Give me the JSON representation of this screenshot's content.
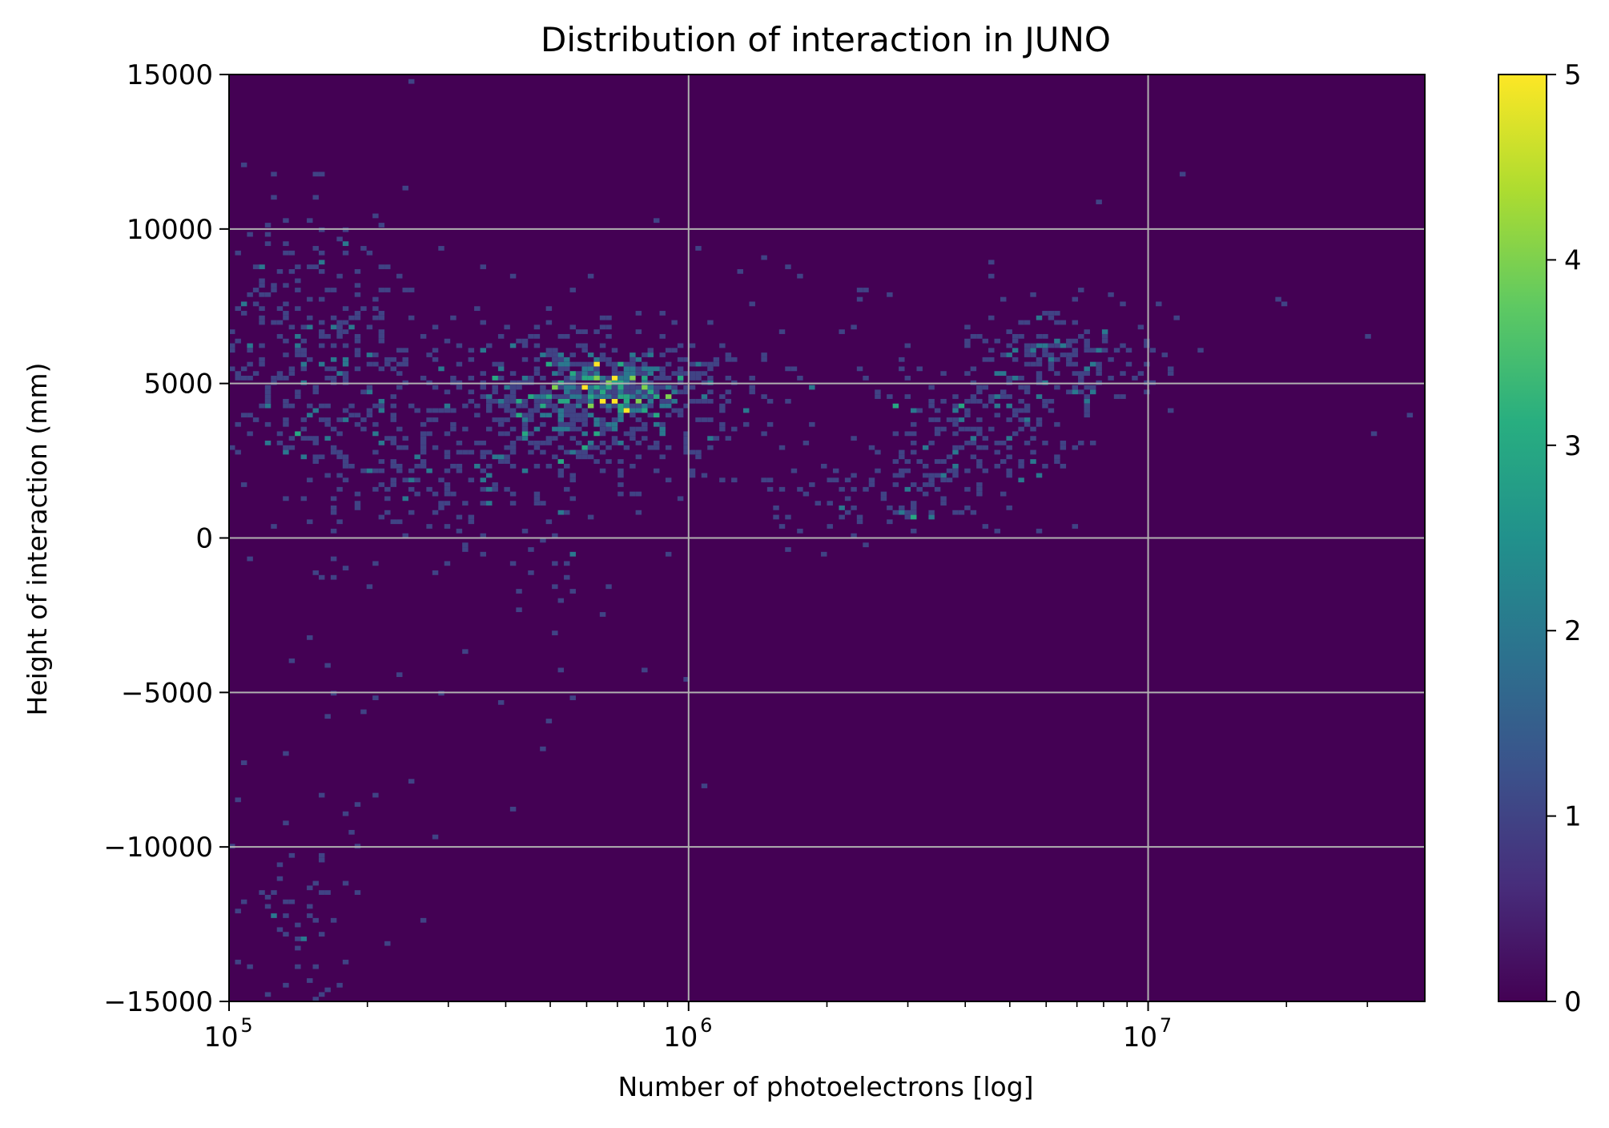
{
  "chart_data": {
    "type": "heatmap",
    "title": "Distribution of interaction in JUNO",
    "xlabel": "Number of photoelectrons [log]",
    "ylabel": "Height of interaction (mm)",
    "xscale": "log",
    "xlim": [
      100000,
      40000000
    ],
    "ylim": [
      -15000,
      15000
    ],
    "x_ticks": [
      {
        "value": 100000,
        "base": "10",
        "exp": "5"
      },
      {
        "value": 1000000,
        "base": "10",
        "exp": "6"
      },
      {
        "value": 10000000,
        "base": "10",
        "exp": "7"
      }
    ],
    "y_ticks": [
      {
        "value": 15000,
        "label": "15000"
      },
      {
        "value": 10000,
        "label": "10000"
      },
      {
        "value": 5000,
        "label": "5000"
      },
      {
        "value": 0,
        "label": "0"
      },
      {
        "value": -5000,
        "label": "−5000"
      },
      {
        "value": -10000,
        "label": "−10000"
      },
      {
        "value": -15000,
        "label": "−15000"
      }
    ],
    "grid": true,
    "colormap": "viridis",
    "colorbar": {
      "range": [
        0,
        5
      ],
      "ticks": [
        {
          "value": 0,
          "label": "0"
        },
        {
          "value": 1,
          "label": "1"
        },
        {
          "value": 2,
          "label": "2"
        },
        {
          "value": 3,
          "label": "3"
        },
        {
          "value": 4,
          "label": "4"
        },
        {
          "value": 5,
          "label": "5"
        }
      ]
    },
    "clusters": [
      {
        "x_center": 150000,
        "y_center": 6000,
        "x_spread_decades": 0.13,
        "y_spread": 2200,
        "points": 320
      },
      {
        "x_center": 600000,
        "y_center": 4300,
        "x_spread_decades": 0.17,
        "y_spread": 1200,
        "points": 520
      },
      {
        "x_center": 700000,
        "y_center": 5000,
        "x_spread_decades": 0.09,
        "y_spread": 600,
        "points": 220
      },
      {
        "x_center": 330000,
        "y_center": 2000,
        "x_spread_decades": 0.18,
        "y_spread": 1700,
        "points": 180
      },
      {
        "x_center": 2800000,
        "y_center": 1500,
        "x_spread_decades": 0.15,
        "y_spread": 900,
        "points": 110
      },
      {
        "x_center": 4500000,
        "y_center": 3600,
        "x_spread_decades": 0.12,
        "y_spread": 1100,
        "points": 150
      },
      {
        "x_center": 6500000,
        "y_center": 5800,
        "x_spread_decades": 0.1,
        "y_spread": 800,
        "points": 150
      },
      {
        "x_center": 140000,
        "y_center": -12000,
        "x_spread_decades": 0.12,
        "y_spread": 1800,
        "points": 70
      },
      {
        "x_center": 200000,
        "y_center": -3000,
        "x_spread_decades": 0.4,
        "y_spread": 3500,
        "points": 60
      },
      {
        "x_center": 3000000,
        "y_center": 6000,
        "x_spread_decades": 0.9,
        "y_spread": 2500,
        "points": 90
      }
    ]
  }
}
